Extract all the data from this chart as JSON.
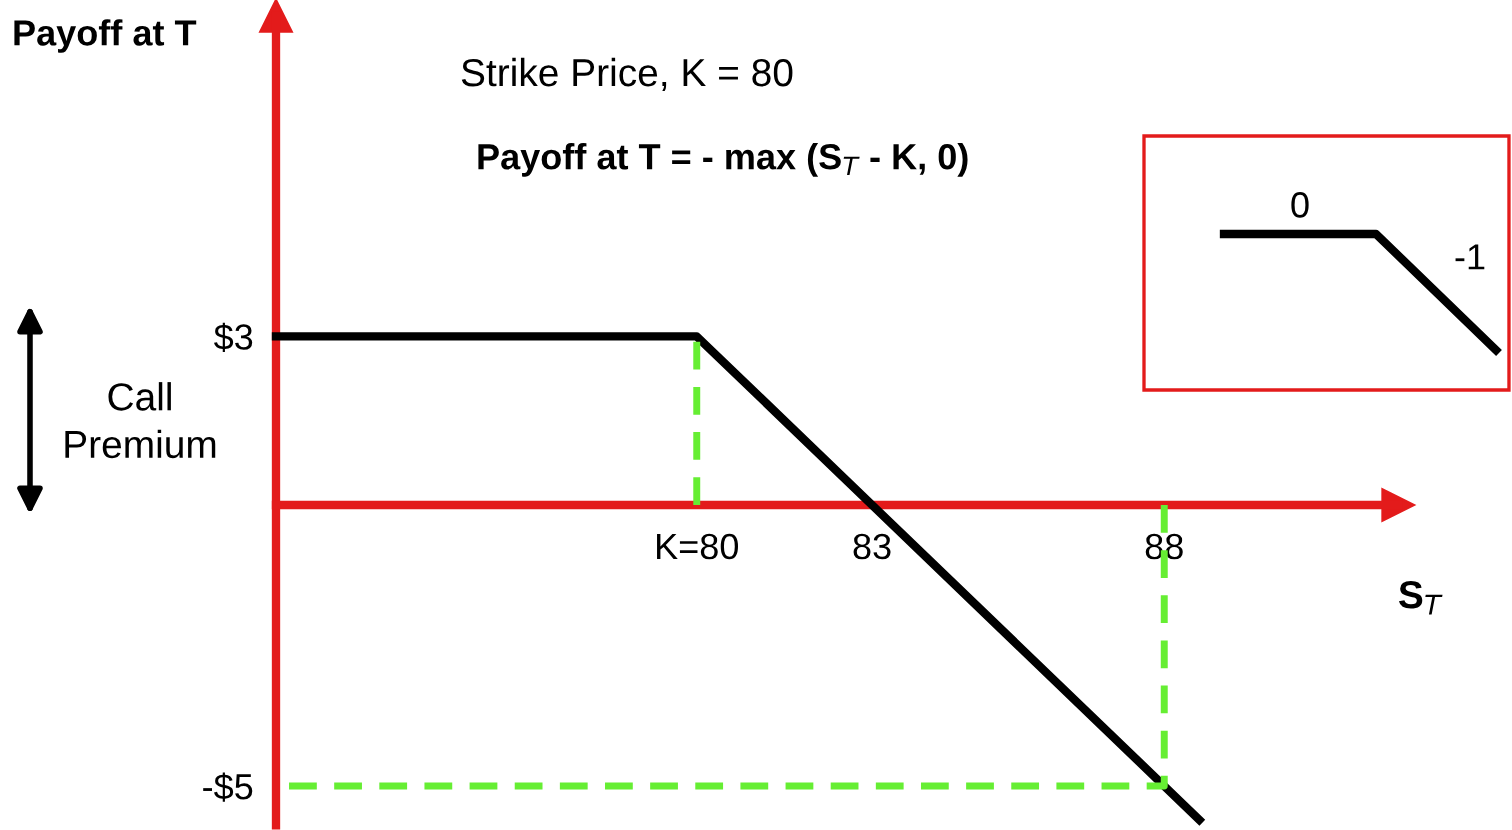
{
  "chart_data": {
    "type": "line",
    "xlabel": "S$_{T}$",
    "ylabel": "Payoff at T",
    "x": [
      72.8,
      80,
      88.6
    ],
    "series": [
      {
        "color": "#000000",
        "values": [
          3,
          3,
          -5.6
        ],
        "line_style": "solid"
      },
      {
        "type": "line",
        "color": "#66ee33",
        "x": [
          80,
          80
        ],
        "values": [
          0,
          3
        ],
        "line_style": "dashed"
      },
      {
        "type": "line",
        "color": "#66ee33",
        "x": [
          88,
          88,
          72.8
        ],
        "values": [
          0,
          -5,
          -5
        ],
        "line_style": "dashed"
      }
    ],
    "xlim": [
      72.8,
      92
    ],
    "ylim": [
      -5.7,
      8.7
    ],
    "xticks": [
      {
        "value": 80,
        "label": "K=80"
      },
      83,
      88
    ],
    "yticks": [
      {
        "value": 3,
        "label": "$3"
      },
      {
        "value": -5,
        "label": "-$5"
      }
    ],
    "grid": false,
    "marker": "none",
    "annotations": [
      "Strike Price, K = 80",
      "Payoff at T = - max (S$_{T}$ - K, 0)",
      "Call Premium",
      "0",
      "-1"
    ]
  }
}
